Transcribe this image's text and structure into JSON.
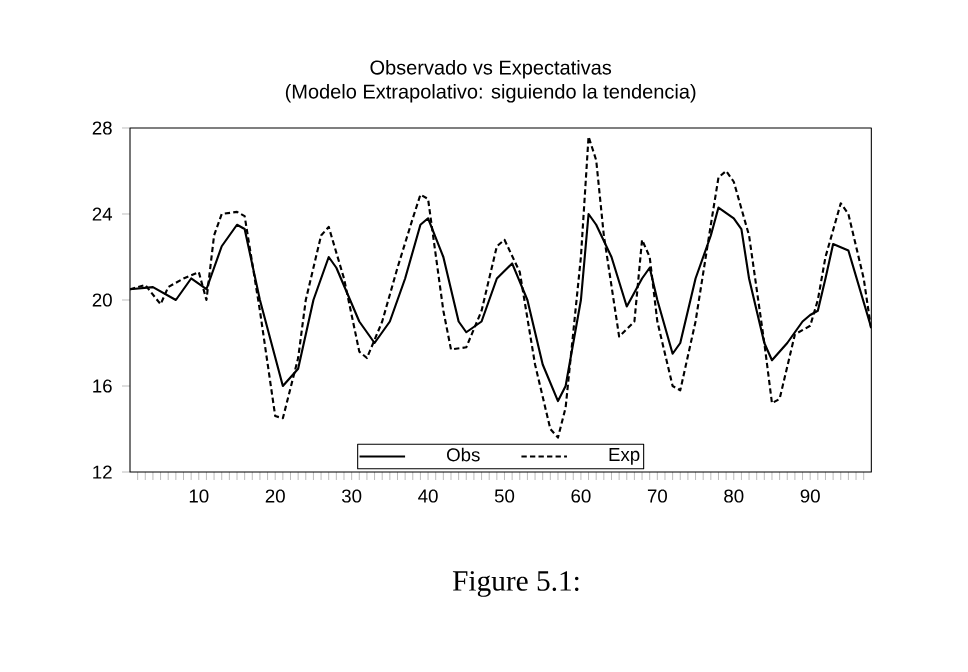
{
  "chart_data": {
    "type": "line",
    "title": "Observado vs Expectativas",
    "subtitle": "(Modelo Extrapolativo: siguiendo la tendencia)",
    "xlim": [
      1,
      98
    ],
    "ylim": [
      12,
      28
    ],
    "yticks": [
      12,
      16,
      20,
      24,
      28
    ],
    "xticks": [
      {
        "value": 2,
        "label": null
      },
      {
        "value": 3,
        "label": null
      },
      {
        "value": 4,
        "label": null
      },
      {
        "value": 5,
        "label": null
      },
      {
        "value": 6,
        "label": null
      },
      {
        "value": 7,
        "label": null
      },
      {
        "value": 8,
        "label": null
      },
      {
        "value": 9,
        "label": null
      },
      10,
      {
        "value": 11,
        "label": null
      },
      {
        "value": 12,
        "label": null
      },
      {
        "value": 13,
        "label": null
      },
      {
        "value": 14,
        "label": null
      },
      {
        "value": 15,
        "label": null
      },
      {
        "value": 16,
        "label": null
      },
      {
        "value": 17,
        "label": null
      },
      {
        "value": 18,
        "label": null
      },
      {
        "value": 19,
        "label": null
      },
      20,
      {
        "value": 21,
        "label": null
      },
      {
        "value": 22,
        "label": null
      },
      {
        "value": 23,
        "label": null
      },
      {
        "value": 24,
        "label": null
      },
      {
        "value": 25,
        "label": null
      },
      {
        "value": 26,
        "label": null
      },
      {
        "value": 27,
        "label": null
      },
      {
        "value": 28,
        "label": null
      },
      {
        "value": 29,
        "label": null
      },
      30,
      {
        "value": 31,
        "label": null
      },
      {
        "value": 32,
        "label": null
      },
      {
        "value": 33,
        "label": null
      },
      {
        "value": 34,
        "label": null
      },
      {
        "value": 35,
        "label": null
      },
      {
        "value": 36,
        "label": null
      },
      {
        "value": 37,
        "label": null
      },
      {
        "value": 38,
        "label": null
      },
      {
        "value": 39,
        "label": null
      },
      40,
      {
        "value": 41,
        "label": null
      },
      {
        "value": 42,
        "label": null
      },
      {
        "value": 43,
        "label": null
      },
      {
        "value": 44,
        "label": null
      },
      {
        "value": 45,
        "label": null
      },
      {
        "value": 46,
        "label": null
      },
      {
        "value": 47,
        "label": null
      },
      {
        "value": 48,
        "label": null
      },
      {
        "value": 49,
        "label": null
      },
      50,
      {
        "value": 51,
        "label": null
      },
      {
        "value": 52,
        "label": null
      },
      {
        "value": 53,
        "label": null
      },
      {
        "value": 54,
        "label": null
      },
      {
        "value": 55,
        "label": null
      },
      {
        "value": 56,
        "label": null
      },
      {
        "value": 57,
        "label": null
      },
      {
        "value": 58,
        "label": null
      },
      {
        "value": 59,
        "label": null
      },
      60,
      {
        "value": 61,
        "label": null
      },
      {
        "value": 62,
        "label": null
      },
      {
        "value": 63,
        "label": null
      },
      {
        "value": 64,
        "label": null
      },
      {
        "value": 65,
        "label": null
      },
      {
        "value": 66,
        "label": null
      },
      {
        "value": 67,
        "label": null
      },
      {
        "value": 68,
        "label": null
      },
      {
        "value": 69,
        "label": null
      },
      70,
      {
        "value": 71,
        "label": null
      },
      {
        "value": 72,
        "label": null
      },
      {
        "value": 73,
        "label": null
      },
      {
        "value": 74,
        "label": null
      },
      {
        "value": 75,
        "label": null
      },
      {
        "value": 76,
        "label": null
      },
      {
        "value": 77,
        "label": null
      },
      {
        "value": 78,
        "label": null
      },
      {
        "value": 79,
        "label": null
      },
      80,
      {
        "value": 81,
        "label": null
      },
      {
        "value": 82,
        "label": null
      },
      {
        "value": 83,
        "label": null
      },
      {
        "value": 84,
        "label": null
      },
      {
        "value": 85,
        "label": null
      },
      {
        "value": 86,
        "label": null
      },
      {
        "value": 87,
        "label": null
      },
      {
        "value": 88,
        "label": null
      },
      {
        "value": 89,
        "label": null
      },
      90,
      {
        "value": 91,
        "label": null
      },
      {
        "value": 92,
        "label": null
      },
      {
        "value": 93,
        "label": null
      },
      {
        "value": 94,
        "label": null
      },
      {
        "value": 95,
        "label": null
      },
      {
        "value": 96,
        "label": null
      },
      {
        "value": 97,
        "label": null
      }
    ],
    "legend": "bottom",
    "marker": "none",
    "grid": false,
    "series": [
      {
        "name": "Obs",
        "color": "#000000",
        "line_style": "solid",
        "x": [
          1,
          4,
          7,
          9,
          11,
          13,
          15,
          16,
          18,
          21,
          23,
          25,
          27,
          28,
          31,
          33,
          35,
          37,
          39,
          40,
          42,
          44,
          45,
          47,
          49,
          51,
          53,
          55,
          57,
          58,
          60,
          61,
          62,
          64,
          66,
          68,
          69,
          70,
          72,
          73,
          75,
          77,
          78,
          80,
          81,
          82,
          84,
          85,
          87,
          89,
          90,
          91,
          92,
          93,
          95,
          98
        ],
        "values": [
          20.5,
          20.6,
          20,
          21,
          20.5,
          22.5,
          23.5,
          23.3,
          20,
          16,
          16.8,
          20,
          22,
          21.5,
          19,
          18,
          19,
          21,
          23.5,
          23.8,
          22,
          19,
          18.5,
          19,
          21,
          21.7,
          20,
          17,
          15.3,
          16,
          20,
          24,
          23.5,
          22,
          19.7,
          21,
          21.5,
          20,
          17.5,
          18,
          21,
          23,
          24.3,
          23.8,
          23.3,
          21,
          18,
          17.2,
          18,
          19,
          19.3,
          19.5,
          21,
          22.6,
          22.3,
          18.7
        ]
      },
      {
        "name": "Exp",
        "color": "#000000",
        "line_style": "dashed",
        "x": [
          1,
          3,
          5,
          6,
          8,
          10,
          11,
          12,
          13,
          15,
          16,
          18,
          20,
          21,
          23,
          24,
          26,
          27,
          29,
          31,
          32,
          34,
          36,
          38,
          39,
          40,
          42,
          43,
          45,
          47,
          49,
          50,
          52,
          54,
          56,
          57,
          58,
          60,
          61,
          62,
          63,
          65,
          67,
          68,
          69,
          70,
          72,
          73,
          75,
          77,
          78,
          79,
          80,
          82,
          84,
          85,
          86,
          88,
          90,
          91,
          92,
          94,
          95,
          97,
          98
        ],
        "values": [
          20.5,
          20.7,
          19.8,
          20.6,
          21,
          21.3,
          20,
          23,
          24,
          24.1,
          23.9,
          19.5,
          14.6,
          14.5,
          17.3,
          20,
          23,
          23.4,
          21,
          17.6,
          17.3,
          19,
          21.5,
          23.8,
          24.9,
          24.7,
          19.5,
          17.7,
          17.8,
          19.5,
          22.5,
          22.8,
          21.3,
          17,
          14,
          13.6,
          15,
          22,
          27.6,
          26.5,
          23,
          18.3,
          19,
          22.8,
          22,
          19,
          16,
          15.8,
          19,
          23.5,
          25.7,
          26,
          25.5,
          23,
          18,
          15.2,
          15.4,
          18.4,
          18.8,
          20,
          22,
          24.5,
          24,
          21,
          18.6
        ]
      }
    ],
    "annotations": [
      "Figure 5.1:"
    ]
  }
}
